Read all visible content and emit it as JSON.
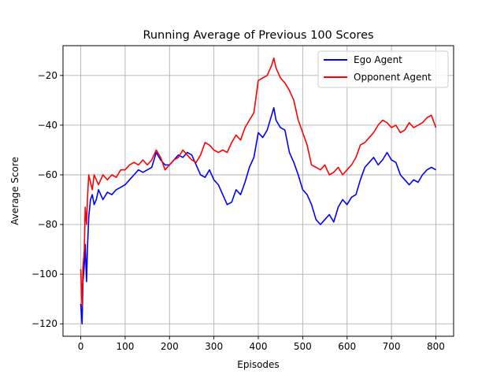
{
  "chart_data": {
    "type": "line",
    "title": "Running Average of Previous 100 Scores",
    "xlabel": "Episodes",
    "ylabel": "Average Score",
    "xlim": [
      -40,
      840
    ],
    "ylim": [
      -125,
      -8
    ],
    "x_ticks": [
      0,
      100,
      200,
      300,
      400,
      500,
      600,
      700,
      800
    ],
    "y_ticks": [
      -120,
      -100,
      -80,
      -60,
      -40,
      -20
    ],
    "grid": true,
    "legend_position": "top-right",
    "series": [
      {
        "name": "Ego Agent",
        "color": "#0000ff",
        "points": [
          [
            0,
            -112
          ],
          [
            3,
            -120
          ],
          [
            5,
            -103
          ],
          [
            8,
            -96
          ],
          [
            10,
            -88
          ],
          [
            13,
            -103
          ],
          [
            15,
            -90
          ],
          [
            18,
            -77
          ],
          [
            22,
            -70
          ],
          [
            26,
            -68
          ],
          [
            30,
            -72
          ],
          [
            35,
            -70
          ],
          [
            40,
            -66
          ],
          [
            50,
            -70
          ],
          [
            60,
            -67
          ],
          [
            70,
            -68
          ],
          [
            80,
            -66
          ],
          [
            90,
            -65
          ],
          [
            100,
            -64
          ],
          [
            110,
            -62
          ],
          [
            120,
            -60
          ],
          [
            130,
            -58
          ],
          [
            140,
            -59
          ],
          [
            150,
            -58
          ],
          [
            160,
            -57
          ],
          [
            170,
            -51
          ],
          [
            180,
            -54
          ],
          [
            190,
            -56
          ],
          [
            200,
            -56
          ],
          [
            210,
            -54
          ],
          [
            220,
            -52
          ],
          [
            230,
            -53
          ],
          [
            240,
            -51
          ],
          [
            250,
            -52
          ],
          [
            260,
            -56
          ],
          [
            270,
            -60
          ],
          [
            280,
            -61
          ],
          [
            290,
            -58
          ],
          [
            300,
            -62
          ],
          [
            310,
            -64
          ],
          [
            320,
            -68
          ],
          [
            330,
            -72
          ],
          [
            340,
            -71
          ],
          [
            350,
            -66
          ],
          [
            360,
            -68
          ],
          [
            370,
            -63
          ],
          [
            380,
            -57
          ],
          [
            390,
            -53
          ],
          [
            400,
            -43
          ],
          [
            410,
            -45
          ],
          [
            420,
            -42
          ],
          [
            430,
            -36
          ],
          [
            435,
            -33
          ],
          [
            440,
            -38
          ],
          [
            450,
            -41
          ],
          [
            460,
            -42
          ],
          [
            470,
            -51
          ],
          [
            480,
            -55
          ],
          [
            490,
            -60
          ],
          [
            500,
            -66
          ],
          [
            510,
            -68
          ],
          [
            520,
            -72
          ],
          [
            530,
            -78
          ],
          [
            540,
            -80
          ],
          [
            550,
            -78
          ],
          [
            560,
            -76
          ],
          [
            570,
            -79
          ],
          [
            580,
            -73
          ],
          [
            590,
            -70
          ],
          [
            600,
            -72
          ],
          [
            610,
            -69
          ],
          [
            620,
            -68
          ],
          [
            630,
            -62
          ],
          [
            640,
            -57
          ],
          [
            650,
            -55
          ],
          [
            660,
            -53
          ],
          [
            670,
            -56
          ],
          [
            680,
            -54
          ],
          [
            690,
            -51
          ],
          [
            700,
            -54
          ],
          [
            710,
            -55
          ],
          [
            720,
            -60
          ],
          [
            730,
            -62
          ],
          [
            740,
            -64
          ],
          [
            750,
            -62
          ],
          [
            760,
            -63
          ],
          [
            770,
            -60
          ],
          [
            780,
            -58
          ],
          [
            790,
            -57
          ],
          [
            800,
            -58
          ]
        ]
      },
      {
        "name": "Opponent Agent",
        "color": "#ff0000",
        "points": [
          [
            0,
            -98
          ],
          [
            3,
            -113
          ],
          [
            5,
            -97
          ],
          [
            8,
            -90
          ],
          [
            10,
            -73
          ],
          [
            13,
            -80
          ],
          [
            15,
            -70
          ],
          [
            18,
            -60
          ],
          [
            22,
            -63
          ],
          [
            26,
            -66
          ],
          [
            30,
            -60
          ],
          [
            35,
            -62
          ],
          [
            40,
            -64
          ],
          [
            50,
            -60
          ],
          [
            60,
            -62
          ],
          [
            70,
            -60
          ],
          [
            80,
            -61
          ],
          [
            90,
            -58
          ],
          [
            100,
            -58
          ],
          [
            110,
            -56
          ],
          [
            120,
            -55
          ],
          [
            130,
            -56
          ],
          [
            140,
            -54
          ],
          [
            150,
            -56
          ],
          [
            160,
            -54
          ],
          [
            170,
            -50
          ],
          [
            180,
            -53
          ],
          [
            190,
            -58
          ],
          [
            200,
            -56
          ],
          [
            210,
            -54
          ],
          [
            220,
            -53
          ],
          [
            230,
            -50
          ],
          [
            240,
            -52
          ],
          [
            250,
            -54
          ],
          [
            260,
            -55
          ],
          [
            270,
            -52
          ],
          [
            280,
            -47
          ],
          [
            290,
            -48
          ],
          [
            300,
            -50
          ],
          [
            310,
            -51
          ],
          [
            320,
            -50
          ],
          [
            330,
            -51
          ],
          [
            340,
            -47
          ],
          [
            350,
            -44
          ],
          [
            360,
            -46
          ],
          [
            370,
            -41
          ],
          [
            380,
            -38
          ],
          [
            390,
            -35
          ],
          [
            400,
            -22
          ],
          [
            410,
            -21
          ],
          [
            420,
            -20
          ],
          [
            430,
            -16
          ],
          [
            435,
            -13
          ],
          [
            440,
            -17
          ],
          [
            450,
            -21
          ],
          [
            460,
            -23
          ],
          [
            470,
            -26
          ],
          [
            480,
            -30
          ],
          [
            490,
            -38
          ],
          [
            500,
            -43
          ],
          [
            510,
            -48
          ],
          [
            520,
            -56
          ],
          [
            530,
            -57
          ],
          [
            540,
            -58
          ],
          [
            550,
            -56
          ],
          [
            560,
            -60
          ],
          [
            570,
            -59
          ],
          [
            580,
            -57
          ],
          [
            590,
            -60
          ],
          [
            600,
            -58
          ],
          [
            610,
            -56
          ],
          [
            620,
            -53
          ],
          [
            630,
            -48
          ],
          [
            640,
            -47
          ],
          [
            650,
            -45
          ],
          [
            660,
            -43
          ],
          [
            670,
            -40
          ],
          [
            680,
            -38
          ],
          [
            690,
            -39
          ],
          [
            700,
            -41
          ],
          [
            710,
            -40
          ],
          [
            720,
            -43
          ],
          [
            730,
            -42
          ],
          [
            740,
            -39
          ],
          [
            750,
            -41
          ],
          [
            760,
            -40
          ],
          [
            770,
            -39
          ],
          [
            780,
            -37
          ],
          [
            790,
            -36
          ],
          [
            800,
            -41
          ]
        ]
      }
    ]
  }
}
